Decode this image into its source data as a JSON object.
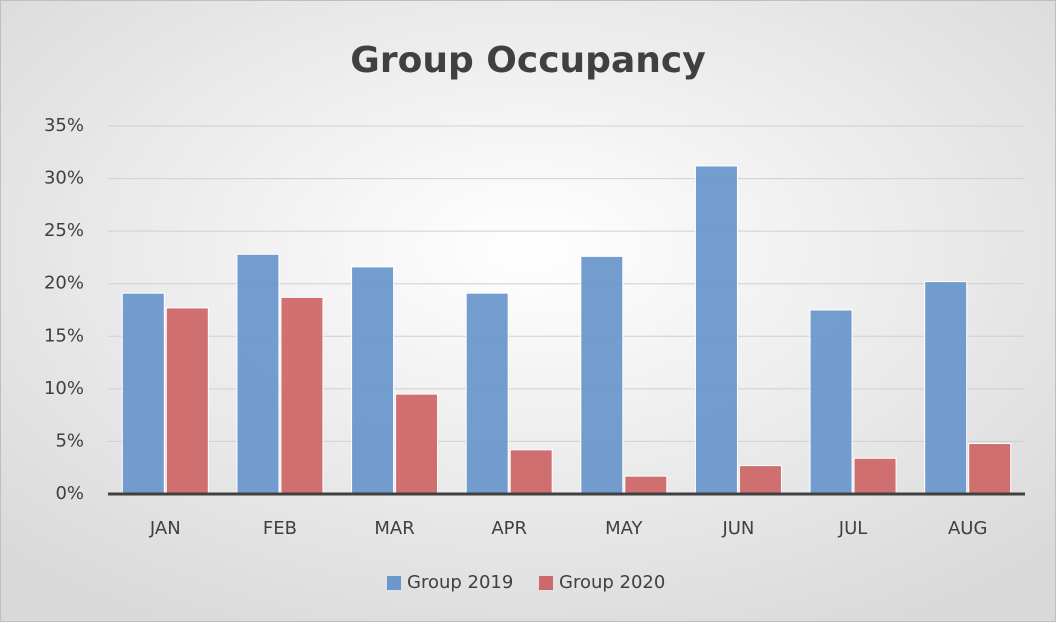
{
  "chart_data": {
    "type": "bar",
    "title": "Group Occupancy",
    "categories": [
      "JAN",
      "FEB",
      "MAR",
      "APR",
      "MAY",
      "JUN",
      "JUL",
      "AUG"
    ],
    "series": [
      {
        "name": "Group 2019",
        "color": "#6a98cb",
        "values": [
          19.1,
          22.8,
          21.6,
          19.1,
          22.6,
          31.2,
          17.5,
          20.2
        ]
      },
      {
        "name": "Group 2020",
        "color": "#cf6868",
        "values": [
          17.7,
          18.7,
          9.5,
          4.2,
          1.7,
          2.7,
          3.4,
          4.8
        ]
      }
    ],
    "ylim": [
      0,
      35
    ],
    "yticks": [
      {
        "value": 0,
        "label": "0%"
      },
      {
        "value": 5,
        "label": "5%"
      },
      {
        "value": 10,
        "label": "10%"
      },
      {
        "value": 15,
        "label": "15%"
      },
      {
        "value": 20,
        "label": "20%"
      },
      {
        "value": 25,
        "label": "25%"
      },
      {
        "value": 30,
        "label": "30%"
      },
      {
        "value": 35,
        "label": "35%"
      }
    ],
    "grid": true,
    "legend": "bottom"
  }
}
